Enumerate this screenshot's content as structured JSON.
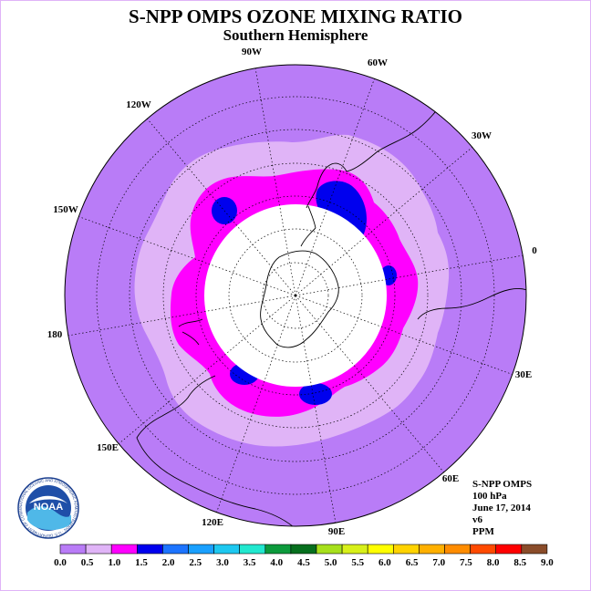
{
  "title": "S-NPP OMPS OZONE MIXING RATIO",
  "subtitle": "Southern Hemisphere",
  "longitude_labels": [
    "0",
    "30E",
    "60E",
    "90E",
    "120E",
    "150E",
    "180",
    "150W",
    "120W",
    "90W",
    "60W",
    "30W"
  ],
  "info": {
    "instrument": "S-NPP OMPS",
    "level": "100 hPa",
    "date": "June 17, 2014",
    "version": "v6",
    "units": "PPM"
  },
  "logo": {
    "text": "NOAA",
    "ring_text": "NATIONAL OCEANIC AND ATMOSPHERIC ADMINISTRATION · U.S. DEPARTMENT OF COMMERCE"
  },
  "colorbar": {
    "ticks": [
      "0.0",
      "0.5",
      "1.0",
      "1.5",
      "2.0",
      "2.5",
      "3.0",
      "3.5",
      "4.0",
      "4.5",
      "5.0",
      "5.5",
      "6.0",
      "6.5",
      "7.0",
      "7.5",
      "8.0",
      "8.5",
      "9.0"
    ],
    "colors": [
      "#b97cf7",
      "#e0b4f7",
      "#ff00ff",
      "#0000ee",
      "#1d74ff",
      "#1aa0ff",
      "#1ec8f0",
      "#22e8cf",
      "#0c9a3c",
      "#066f1e",
      "#a7e01c",
      "#d8f01a",
      "#ffff00",
      "#ffd300",
      "#ffb000",
      "#ff8c00",
      "#ff4a00",
      "#ff0000",
      "#8a4c2a"
    ]
  },
  "map": {
    "levels_ppm": {
      "background": "0.0-0.5",
      "ring_light": "0.5-1.0",
      "ring_magenta": "1.0-1.5",
      "blobs_blue": "1.5-2.0"
    },
    "colors": {
      "background": "#b97cf7",
      "light": "#e0b4f7",
      "magenta": "#ff00ff",
      "blue": "#0000ee",
      "nodata": "#ffffff"
    }
  }
}
